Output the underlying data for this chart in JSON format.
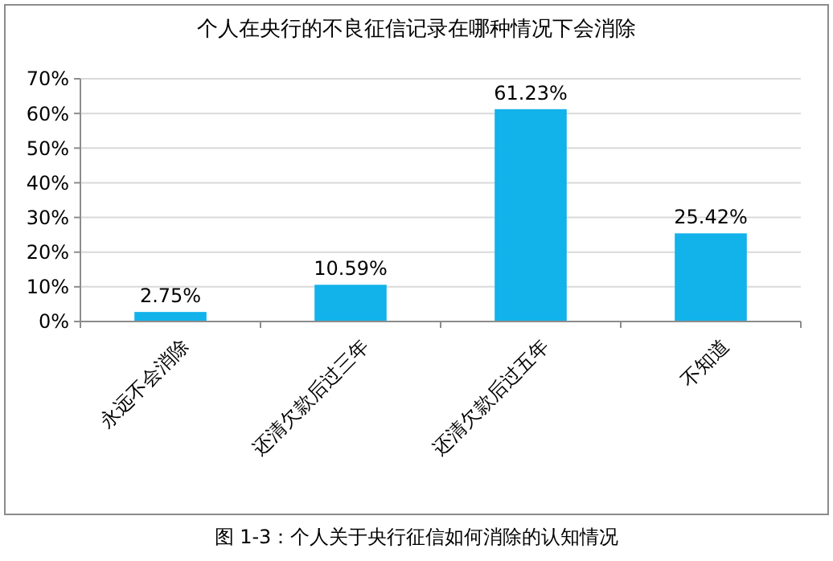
{
  "chart_data": {
    "type": "bar",
    "title": "个人在央行的不良征信记录在哪种情况下会消除",
    "categories": [
      "永远不会消除",
      "还清欠款后过三年",
      "还清欠款后过五年",
      "不知道"
    ],
    "values": [
      2.75,
      10.59,
      61.23,
      25.42
    ],
    "value_labels": [
      "2.75%",
      "10.59%",
      "61.23%",
      "25.42%"
    ],
    "color": "#12b2ea",
    "ylim": [
      0,
      70
    ],
    "yticks": [
      {
        "value": 0,
        "label": "0%"
      },
      {
        "value": 10,
        "label": "10%"
      },
      {
        "value": 20,
        "label": "20%"
      },
      {
        "value": 30,
        "label": "30%"
      },
      {
        "value": 40,
        "label": "40%"
      },
      {
        "value": 50,
        "label": "50%"
      },
      {
        "value": 60,
        "label": "60%"
      },
      {
        "value": 70,
        "label": "70%"
      }
    ],
    "grid": "y",
    "annotations": [
      "图 1-3：个人关于央行征信如何消除的认知情况"
    ]
  }
}
